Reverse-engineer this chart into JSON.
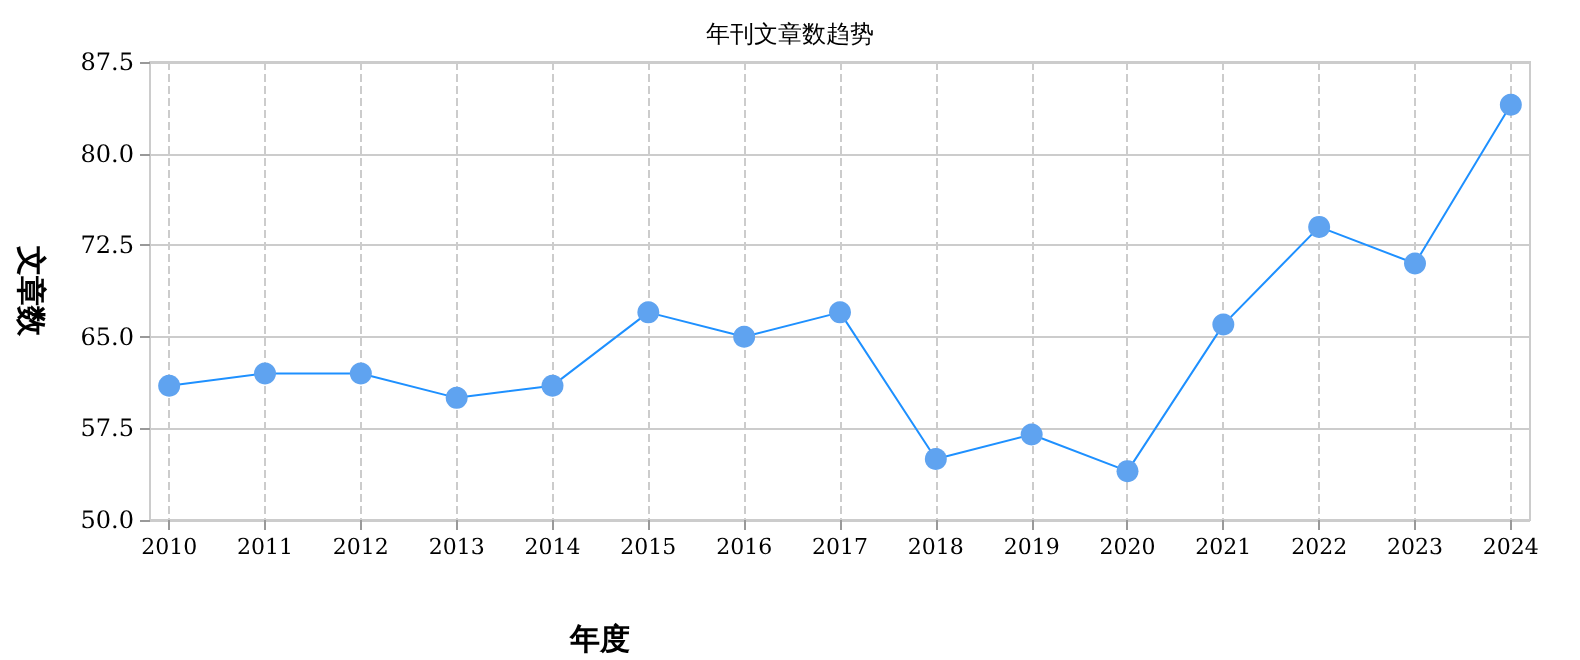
{
  "chart_data": {
    "type": "line",
    "title": "年刊文章数趋势",
    "xlabel": "年度",
    "ylabel": "文章数",
    "x": [
      2010,
      2011,
      2012,
      2013,
      2014,
      2015,
      2016,
      2017,
      2018,
      2019,
      2020,
      2021,
      2022,
      2023,
      2024
    ],
    "series": [
      {
        "color": "#1e90ff",
        "values": [
          61,
          62,
          62,
          60,
          61,
          67,
          65,
          67,
          55,
          57,
          54,
          66,
          74,
          71,
          84
        ]
      }
    ],
    "xlim": [
      2009.8,
      2024.2
    ],
    "xticks": [
      2010,
      2011,
      2012,
      2013,
      2014,
      2015,
      2016,
      2017,
      2018,
      2019,
      2020,
      2021,
      2022,
      2023,
      2024
    ],
    "ylim": [
      50,
      87.5
    ],
    "yticks": [
      {
        "value": 50,
        "label": "50.0"
      },
      {
        "value": 57.5,
        "label": "57.5"
      },
      {
        "value": 65,
        "label": "65.0"
      },
      {
        "value": 72.5,
        "label": "72.5"
      },
      {
        "value": 80,
        "label": "80.0"
      },
      {
        "value": 87.5,
        "label": "87.5"
      }
    ],
    "grid": true,
    "marker": "circle",
    "line_style": "solid"
  }
}
